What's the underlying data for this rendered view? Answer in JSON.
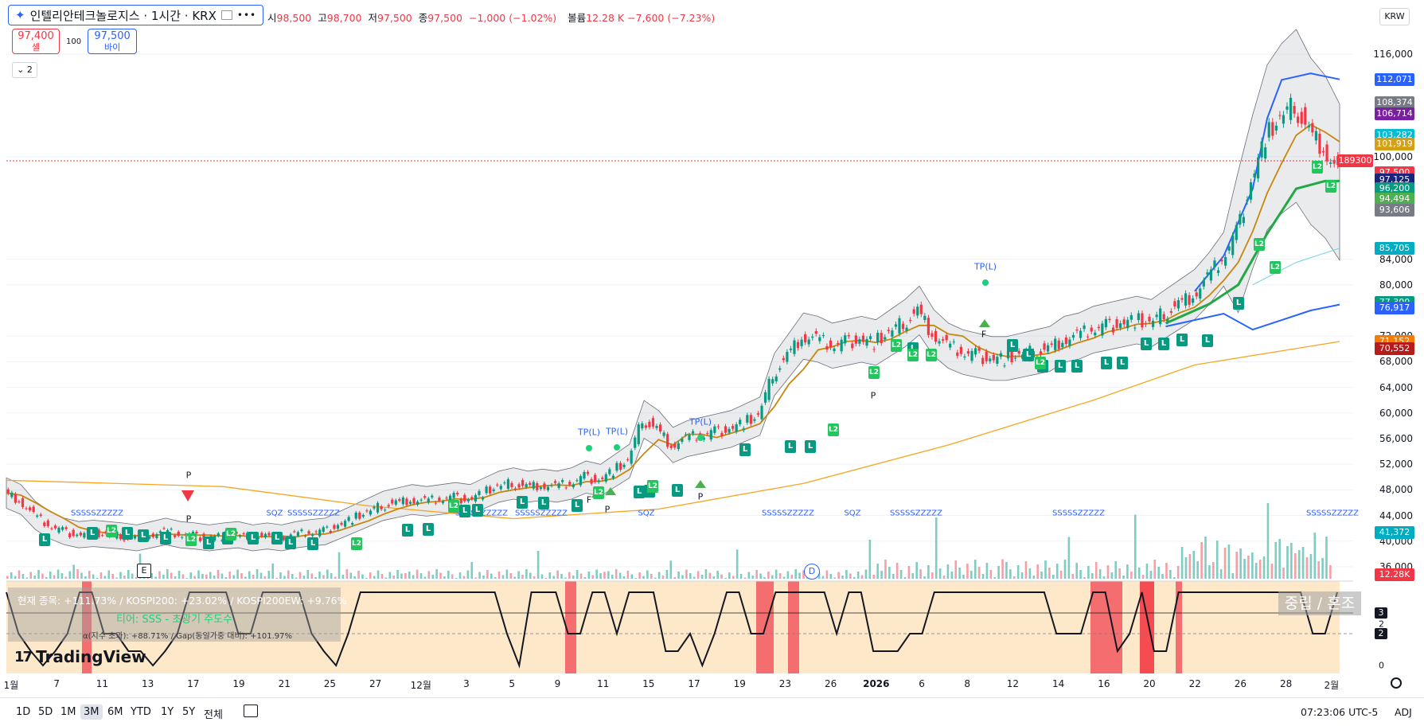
{
  "header": {
    "symbol_title": "인텔리안테크놀로지스 · 1시간 · KRX",
    "ohlc": {
      "open_key": "시",
      "open": "98,500",
      "high_key": "고",
      "high": "98,700",
      "low_key": "저",
      "low": "97,500",
      "close_key": "종",
      "close": "97,500",
      "change": "−1,000 (−1.02%)",
      "volume_key": "볼륨",
      "volume": "12.28 K",
      "vol_change": "−7,600 (−7.23%)"
    },
    "sell_price": "97,400",
    "sell_label": "셀",
    "spread": "100",
    "buy_price": "97,500",
    "buy_label": "바이",
    "collapse_count": "2",
    "currency": "KRW"
  },
  "price_axis": {
    "labels": [
      "116,000",
      "100,000",
      "84,000",
      "80,000",
      "72,000",
      "68,000",
      "64,000",
      "60,000",
      "56,000",
      "52,000",
      "48,000",
      "44,000",
      "40,000",
      "36,000"
    ]
  },
  "price_tags": [
    {
      "text": "112,071",
      "color": "#2962ff",
      "price": 112071
    },
    {
      "text": "108,374",
      "color": "#787b86",
      "price": 108374
    },
    {
      "text": "106,714",
      "color": "#7b1fa2",
      "price": 106714
    },
    {
      "text": "103,282",
      "color": "#00bcd4",
      "price": 103282
    },
    {
      "text": "101,919",
      "color": "#d4a017",
      "price": 101919
    },
    {
      "text": "97,500",
      "color": "#f23645",
      "price": 97500
    },
    {
      "text": "97,125",
      "color": "#1a237e",
      "price": 96400
    },
    {
      "text": "96,200",
      "color": "#089981",
      "price": 94980
    },
    {
      "text": "94,494",
      "color": "#4caf50",
      "price": 93400
    },
    {
      "text": "93,606",
      "color": "#787b86",
      "price": 91700
    },
    {
      "text": "85,705",
      "color": "#00acc1",
      "price": 85705
    },
    {
      "text": "77,300",
      "color": "#089981",
      "price": 77300
    },
    {
      "text": "76,917",
      "color": "#2962ff",
      "price": 76400
    },
    {
      "text": "71,152",
      "color": "#f57c00",
      "price": 71152
    },
    {
      "text": "70,552",
      "color": "#b71c1c",
      "price": 70000
    },
    {
      "text": "41,372",
      "color": "#00acc1",
      "price": 41372
    },
    {
      "text": "12.28K",
      "color": "#f23645",
      "price": 34800
    }
  ],
  "extra_tag": "189300",
  "oscillator": {
    "info_line1": "현재 종목: +111.73% / KOSPI200: +23.02% / KOSPI200EW: +9.76%",
    "info_line2": "티어: SSS - 초광기 주도수",
    "info_line3": "α(지수 초과): +88.71% / Gap(동일가중 대비): +101.97%",
    "state_label": "중립 / 혼조",
    "axis": [
      "3",
      "2",
      "0"
    ],
    "tags": [
      "3",
      "2"
    ],
    "levels": [
      3,
      2,
      1,
      0,
      1,
      2,
      3,
      3,
      2,
      2,
      1,
      1,
      0,
      1,
      2,
      3,
      3,
      3,
      3,
      2,
      2,
      3,
      3,
      3,
      3,
      2,
      1,
      0,
      2,
      3,
      3,
      3,
      3,
      3,
      3,
      3,
      3,
      3,
      3,
      3,
      3,
      2,
      0,
      3,
      3,
      3,
      2,
      2,
      3,
      3,
      2,
      3,
      3,
      3,
      1,
      1,
      2,
      0,
      2,
      3,
      3,
      2,
      2,
      3,
      3,
      3,
      3,
      3,
      2,
      3,
      3,
      1,
      1,
      1,
      2,
      2,
      3,
      3,
      3,
      3,
      3,
      3,
      3,
      3,
      3,
      3,
      2,
      2,
      2,
      3,
      3,
      1,
      2,
      3,
      1,
      1,
      3,
      3,
      3,
      3,
      3,
      3,
      3,
      3,
      3,
      3,
      3,
      2,
      2,
      3
    ]
  },
  "x_axis": {
    "labels": [
      {
        "t": "1월",
        "bold": false
      },
      {
        "t": "7",
        "bold": false
      },
      {
        "t": "11",
        "bold": false
      },
      {
        "t": "13",
        "bold": false
      },
      {
        "t": "17",
        "bold": false
      },
      {
        "t": "19",
        "bold": false
      },
      {
        "t": "21",
        "bold": false
      },
      {
        "t": "25",
        "bold": false
      },
      {
        "t": "27",
        "bold": false
      },
      {
        "t": "12월",
        "bold": false
      },
      {
        "t": "3",
        "bold": false
      },
      {
        "t": "5",
        "bold": false
      },
      {
        "t": "9",
        "bold": false
      },
      {
        "t": "11",
        "bold": false
      },
      {
        "t": "15",
        "bold": false
      },
      {
        "t": "17",
        "bold": false
      },
      {
        "t": "19",
        "bold": false
      },
      {
        "t": "23",
        "bold": false
      },
      {
        "t": "26",
        "bold": false
      },
      {
        "t": "2026",
        "bold": true
      },
      {
        "t": "6",
        "bold": false
      },
      {
        "t": "8",
        "bold": false
      },
      {
        "t": "12",
        "bold": false
      },
      {
        "t": "14",
        "bold": false
      },
      {
        "t": "16",
        "bold": false
      },
      {
        "t": "20",
        "bold": false
      },
      {
        "t": "22",
        "bold": false
      },
      {
        "t": "26",
        "bold": false
      },
      {
        "t": "28",
        "bold": false
      },
      {
        "t": "2월",
        "bold": false
      }
    ]
  },
  "bottom_bar": {
    "ranges": [
      "1D",
      "5D",
      "1M",
      "3M",
      "6M",
      "YTD",
      "1Y",
      "5Y",
      "전체"
    ],
    "active_range": "3M",
    "time": "07:23:06 UTC-5",
    "adj": "ADJ"
  },
  "logo_text": "TradingView",
  "badges": {
    "e": "E",
    "d": "D"
  },
  "markers": {
    "tp": "TP(L)",
    "p": "P",
    "f": "F",
    "sqz": "SQZ",
    "sqz_long": "SSSSSZZZZZ",
    "l": "L",
    "l2": "L2"
  },
  "chart_data": {
    "type": "candlestick",
    "symbol": "인텔리안테크놀로지스",
    "interval": "1시간",
    "exchange": "KRX",
    "y_range": [
      34000,
      118000
    ],
    "close_path": [
      [
        0,
        47500
      ],
      [
        1,
        46500
      ],
      [
        2,
        44000
      ],
      [
        3,
        42500
      ],
      [
        4,
        41500
      ],
      [
        5,
        41000
      ],
      [
        6,
        41200
      ],
      [
        7,
        41000
      ],
      [
        8,
        40800
      ],
      [
        9,
        40500
      ],
      [
        10,
        41000
      ],
      [
        11,
        41500
      ],
      [
        12,
        41000
      ],
      [
        13,
        40800
      ],
      [
        14,
        40500
      ],
      [
        15,
        40800
      ],
      [
        16,
        41000
      ],
      [
        17,
        40500
      ],
      [
        18,
        40800
      ],
      [
        19,
        40500
      ],
      [
        20,
        41000
      ],
      [
        21,
        41300
      ],
      [
        22,
        41500
      ],
      [
        23,
        42500
      ],
      [
        24,
        43500
      ],
      [
        25,
        44500
      ],
      [
        26,
        45500
      ],
      [
        27,
        46000
      ],
      [
        28,
        46500
      ],
      [
        29,
        46200
      ],
      [
        30,
        46500
      ],
      [
        31,
        46800
      ],
      [
        32,
        46500
      ],
      [
        33,
        47500
      ],
      [
        34,
        48500
      ],
      [
        35,
        49000
      ],
      [
        36,
        48500
      ],
      [
        37,
        48800
      ],
      [
        38,
        48500
      ],
      [
        39,
        49000
      ],
      [
        40,
        50000
      ],
      [
        41,
        49500
      ],
      [
        42,
        51000
      ],
      [
        43,
        52500
      ],
      [
        44,
        59000
      ],
      [
        45,
        57500
      ],
      [
        46,
        55000
      ],
      [
        47,
        56000
      ],
      [
        48,
        56500
      ],
      [
        49,
        57000
      ],
      [
        50,
        57500
      ],
      [
        51,
        58500
      ],
      [
        52,
        59500
      ],
      [
        53,
        66000
      ],
      [
        54,
        69000
      ],
      [
        55,
        72000
      ],
      [
        56,
        71500
      ],
      [
        57,
        70500
      ],
      [
        58,
        71000
      ],
      [
        59,
        71500
      ],
      [
        60,
        71000
      ],
      [
        61,
        72500
      ],
      [
        62,
        74000
      ],
      [
        63,
        76000
      ],
      [
        64,
        72500
      ],
      [
        65,
        70500
      ],
      [
        66,
        69500
      ],
      [
        67,
        69000
      ],
      [
        68,
        68500
      ],
      [
        69,
        68500
      ],
      [
        70,
        69000
      ],
      [
        71,
        69500
      ],
      [
        72,
        70000
      ],
      [
        73,
        71500
      ],
      [
        74,
        72000
      ],
      [
        75,
        73000
      ],
      [
        76,
        73500
      ],
      [
        77,
        74000
      ],
      [
        78,
        74500
      ],
      [
        79,
        74000
      ],
      [
        80,
        75500
      ],
      [
        81,
        77000
      ],
      [
        82,
        78500
      ],
      [
        83,
        81000
      ],
      [
        84,
        84000
      ],
      [
        85,
        88000
      ],
      [
        86,
        96000
      ],
      [
        87,
        103000
      ],
      [
        88,
        106000
      ],
      [
        89,
        108000
      ],
      [
        90,
        104000
      ],
      [
        91,
        101500
      ],
      [
        92,
        97500
      ]
    ]
  }
}
